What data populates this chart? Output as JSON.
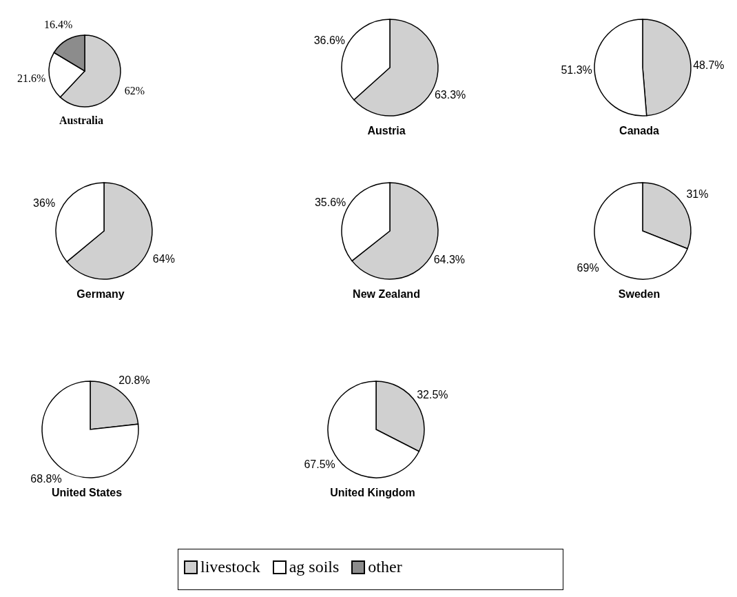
{
  "chart_data": [
    {
      "type": "pie",
      "title": "Australia",
      "categories": [
        "livestock",
        "ag soils",
        "other"
      ],
      "values": [
        62,
        21.6,
        16.4
      ],
      "value_labels": [
        "62%",
        "21.6%",
        "16.4%"
      ],
      "colors": [
        "#d0d0d0",
        "#ffffff",
        "#8c8c8c"
      ],
      "legend": "bottom"
    },
    {
      "type": "pie",
      "title": "Austria",
      "categories": [
        null,
        null
      ],
      "values": [
        63.3,
        36.6
      ],
      "value_labels": [
        "63.3%",
        "36.6%"
      ],
      "colors": [
        "#d0d0d0",
        "#ffffff"
      ]
    },
    {
      "type": "pie",
      "title": "Canada",
      "categories": [
        null,
        null
      ],
      "values": [
        48.7,
        51.3
      ],
      "value_labels": [
        "48.7%",
        "51.3%"
      ],
      "colors": [
        "#d0d0d0",
        "#ffffff"
      ]
    },
    {
      "type": "pie",
      "title": "Germany",
      "categories": [
        null,
        null
      ],
      "values": [
        64,
        36
      ],
      "value_labels": [
        "64%",
        "36%"
      ],
      "colors": [
        "#d0d0d0",
        "#ffffff"
      ]
    },
    {
      "type": "pie",
      "title": "New Zealand",
      "categories": [
        null,
        null
      ],
      "values": [
        64.3,
        35.6
      ],
      "value_labels": [
        "64.3%",
        "35.6%"
      ],
      "colors": [
        "#d0d0d0",
        "#ffffff"
      ]
    },
    {
      "type": "pie",
      "title": "Sweden",
      "categories": [
        null,
        null
      ],
      "values": [
        31,
        69
      ],
      "value_labels": [
        "31%",
        "69%"
      ],
      "colors": [
        "#d0d0d0",
        "#ffffff"
      ]
    },
    {
      "type": "pie",
      "title": "United States",
      "categories": [
        null,
        null
      ],
      "values": [
        20.8,
        68.8
      ],
      "value_labels": [
        "20.8%",
        "68.8%"
      ],
      "colors": [
        "#d0d0d0",
        "#ffffff"
      ]
    },
    {
      "type": "pie",
      "title": "United Kingdom",
      "categories": [
        null,
        null
      ],
      "values": [
        32.5,
        67.5
      ],
      "value_labels": [
        "32.5%",
        "67.5%"
      ],
      "colors": [
        "#d0d0d0",
        "#ffffff"
      ]
    }
  ]
}
